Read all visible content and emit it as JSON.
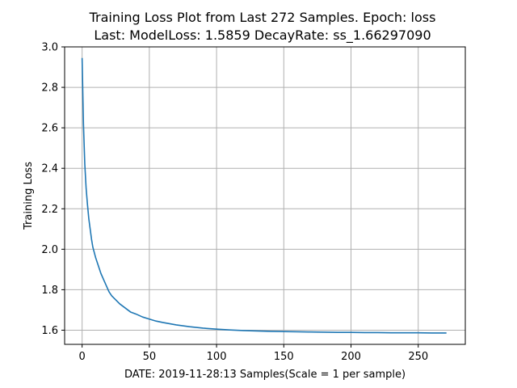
{
  "chart_data": {
    "type": "line",
    "title_line1": "Training Loss Plot from Last 272 Samples.    Epoch: loss",
    "title_line2": "Last: ModelLoss: 1.5859     DecayRate: ss_1.66297090",
    "xlabel": "DATE: 2019-11-28:13      Samples(Scale = 1 per sample)",
    "ylabel": "Training Loss",
    "xlim": [
      -13,
      285
    ],
    "ylim": [
      1.53,
      3.0
    ],
    "x_ticks": [
      0,
      50,
      100,
      150,
      200,
      250
    ],
    "y_ticks": [
      1.6,
      1.8,
      2.0,
      2.2,
      2.4,
      2.6,
      2.8,
      3.0
    ],
    "x_tick_labels": [
      "0",
      "50",
      "100",
      "150",
      "200",
      "250"
    ],
    "y_tick_labels": [
      "1.6",
      "1.8",
      "2.0",
      "2.2",
      "2.4",
      "2.6",
      "2.8",
      "3.0"
    ],
    "grid": true,
    "line_color": "#1f77b4",
    "series": [
      {
        "x": [
          0,
          1,
          2,
          3,
          4,
          5,
          6,
          7,
          8,
          10,
          12,
          14,
          16,
          18,
          20,
          22,
          25,
          28,
          30,
          33,
          36,
          40,
          45,
          50,
          55,
          60,
          70,
          80,
          90,
          100,
          110,
          120,
          130,
          140,
          150,
          160,
          170,
          180,
          190,
          200,
          210,
          220,
          230,
          240,
          250,
          260,
          271
        ],
        "values": [
          2.945,
          2.62,
          2.42,
          2.3,
          2.22,
          2.15,
          2.1,
          2.05,
          2.01,
          1.96,
          1.92,
          1.88,
          1.85,
          1.82,
          1.79,
          1.77,
          1.75,
          1.73,
          1.72,
          1.705,
          1.69,
          1.68,
          1.665,
          1.655,
          1.645,
          1.638,
          1.626,
          1.617,
          1.61,
          1.605,
          1.601,
          1.598,
          1.596,
          1.594,
          1.593,
          1.592,
          1.591,
          1.59,
          1.589,
          1.589,
          1.588,
          1.588,
          1.587,
          1.587,
          1.587,
          1.586,
          1.586
        ]
      }
    ]
  }
}
